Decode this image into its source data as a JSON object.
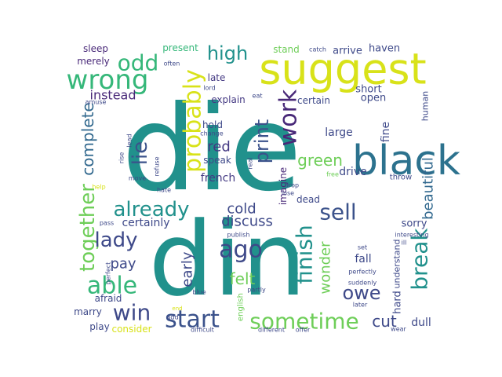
{
  "words": [
    {
      "text": "die",
      "color": "#21918c"
    },
    {
      "text": "din",
      "color": "#21918c"
    },
    {
      "text": "suggest",
      "color": "#d8e219"
    },
    {
      "text": "black",
      "color": "#2c728e"
    },
    {
      "text": "wrong",
      "color": "#35b779"
    },
    {
      "text": "odd",
      "color": "#35b779"
    },
    {
      "text": "probably",
      "color": "#d8e219"
    },
    {
      "text": "high",
      "color": "#21918c"
    },
    {
      "text": "work",
      "color": "#482878"
    },
    {
      "text": "print",
      "color": "#3b528b"
    },
    {
      "text": "lie",
      "color": "#3b528b"
    },
    {
      "text": "complete",
      "color": "#31688e"
    },
    {
      "text": "together",
      "color": "#6ece58"
    },
    {
      "text": "already",
      "color": "#21918c"
    },
    {
      "text": "sell",
      "color": "#3b528b"
    },
    {
      "text": "green",
      "color": "#6ece58"
    },
    {
      "text": "beautiful",
      "color": "#31688e"
    },
    {
      "text": "break",
      "color": "#21918c"
    },
    {
      "text": "lady",
      "color": "#3e4989"
    },
    {
      "text": "able",
      "color": "#35b779"
    },
    {
      "text": "ago",
      "color": "#3e4989"
    },
    {
      "text": "finish",
      "color": "#21918c"
    },
    {
      "text": "start",
      "color": "#3b528b"
    },
    {
      "text": "sometime",
      "color": "#6ece58"
    },
    {
      "text": "win",
      "color": "#3e4989"
    },
    {
      "text": "owe",
      "color": "#3e4989"
    },
    {
      "text": "cold",
      "color": "#3e4989"
    },
    {
      "text": "discuss",
      "color": "#3e4989"
    },
    {
      "text": "pay",
      "color": "#3e4989"
    },
    {
      "text": "felt",
      "color": "#6ece58"
    },
    {
      "text": "wonder",
      "color": "#6ece58"
    },
    {
      "text": "early",
      "color": "#3e4989"
    },
    {
      "text": "certainly",
      "color": "#3e4989"
    },
    {
      "text": "cut",
      "color": "#3e4989"
    },
    {
      "text": "instead",
      "color": "#482878"
    },
    {
      "text": "red",
      "color": "#443983"
    },
    {
      "text": "french",
      "color": "#443983"
    },
    {
      "text": "late",
      "color": "#443983"
    },
    {
      "text": "explain",
      "color": "#443983"
    },
    {
      "text": "present",
      "color": "#35b779"
    },
    {
      "text": "sleep",
      "color": "#482878"
    },
    {
      "text": "merely",
      "color": "#482878"
    },
    {
      "text": "stand",
      "color": "#6ece58"
    },
    {
      "text": "arrive",
      "color": "#3e4989"
    },
    {
      "text": "haven",
      "color": "#3e4989"
    },
    {
      "text": "short",
      "color": "#3e4989"
    },
    {
      "text": "open",
      "color": "#3e4989"
    },
    {
      "text": "human",
      "color": "#3e4989"
    },
    {
      "text": "certain",
      "color": "#3e4989"
    },
    {
      "text": "large",
      "color": "#3e4989"
    },
    {
      "text": "fine",
      "color": "#3e4989"
    },
    {
      "text": "drive",
      "color": "#3e4989"
    },
    {
      "text": "hold",
      "color": "#3e4989"
    },
    {
      "text": "speak",
      "color": "#3e4989"
    },
    {
      "text": "dead",
      "color": "#3e4989"
    },
    {
      "text": "sorry",
      "color": "#3e4989"
    },
    {
      "text": "fall",
      "color": "#3e4989"
    },
    {
      "text": "understand",
      "color": "#3e4989"
    },
    {
      "text": "hard",
      "color": "#3e4989"
    },
    {
      "text": "dull",
      "color": "#3e4989"
    },
    {
      "text": "play",
      "color": "#3e4989"
    },
    {
      "text": "marry",
      "color": "#3e4989"
    },
    {
      "text": "afraid",
      "color": "#3e4989"
    },
    {
      "text": "consider",
      "color": "#d8e219"
    },
    {
      "text": "english",
      "color": "#6ece58"
    },
    {
      "text": "imagine",
      "color": "#482878"
    },
    {
      "text": "throw",
      "color": "#3e4989"
    },
    {
      "text": "interesting",
      "color": "#3e4989"
    },
    {
      "text": "ill",
      "color": "#3e4989"
    },
    {
      "text": "set",
      "color": "#3e4989"
    },
    {
      "text": "perfectly",
      "color": "#3e4989"
    },
    {
      "text": "suddenly",
      "color": "#3e4989"
    },
    {
      "text": "later",
      "color": "#3e4989"
    },
    {
      "text": "wear",
      "color": "#3e4989"
    },
    {
      "text": "offer",
      "color": "#3e4989"
    },
    {
      "text": "different",
      "color": "#3e4989"
    },
    {
      "text": "difficult",
      "color": "#3e4989"
    },
    {
      "text": "partly",
      "color": "#3e4989"
    },
    {
      "text": "publish",
      "color": "#3e4989"
    },
    {
      "text": "blue",
      "color": "#3e4989"
    },
    {
      "text": "add",
      "color": "#3e4989"
    },
    {
      "text": "end",
      "color": "#d8e219"
    },
    {
      "text": "pass",
      "color": "#3e4989"
    },
    {
      "text": "perfect",
      "color": "#3e4989"
    },
    {
      "text": "help",
      "color": "#d8e219"
    },
    {
      "text": "move",
      "color": "#3e4989"
    },
    {
      "text": "hate",
      "color": "#3e4989"
    },
    {
      "text": "refuse",
      "color": "#3e4989"
    },
    {
      "text": "lead",
      "color": "#3e4989"
    },
    {
      "text": "rise",
      "color": "#3e4989"
    },
    {
      "text": "change",
      "color": "#3e4989"
    },
    {
      "text": "lord",
      "color": "#3e4989"
    },
    {
      "text": "eat",
      "color": "#3e4989"
    },
    {
      "text": "amuse",
      "color": "#3e4989"
    },
    {
      "text": "often",
      "color": "#3e4989"
    },
    {
      "text": "catch",
      "color": "#3e4989"
    },
    {
      "text": "real",
      "color": "#3e4989"
    },
    {
      "text": "drop",
      "color": "#3e4989"
    },
    {
      "text": "lose",
      "color": "#3e4989"
    },
    {
      "text": "free",
      "color": "#6ece58"
    }
  ]
}
